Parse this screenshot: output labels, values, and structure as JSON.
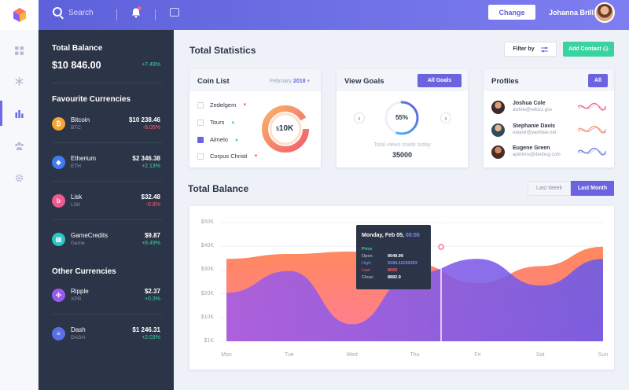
{
  "topbar": {
    "search_placeholder": "Search",
    "change_label": "Change",
    "user_name": "Johanna Brill"
  },
  "sidebar": {
    "total_balance_label": "Total Balance",
    "total_balance_value": "$10 846.00",
    "total_balance_change": "+7.49%",
    "favourite_heading": "Favourite Currencies",
    "favourites": [
      {
        "name": "Bitcoin",
        "code": "BTC",
        "value": "$10 238.46",
        "change": "-8.05%",
        "color": "#f7a531",
        "glyph": "₿"
      },
      {
        "name": "Etherium",
        "code": "ETH",
        "value": "$2 346.38",
        "change": "+2.13%",
        "color": "#3f7cf2",
        "glyph": "◆"
      },
      {
        "name": "Lisk",
        "code": "LSK",
        "value": "$32.48",
        "change": "-0.8%",
        "color": "#ef5b8e",
        "glyph": "b"
      },
      {
        "name": "GameCredits",
        "code": "Game",
        "value": "$9.87",
        "change": "+8.49%",
        "color": "#2ec5c5",
        "glyph": "▤"
      }
    ],
    "other_heading": "Other Currencies",
    "others": [
      {
        "name": "Ripple",
        "code": "XPR",
        "value": "$2.37",
        "change": "+0.3%",
        "color": "#9b59f0",
        "glyph": "✣"
      },
      {
        "name": "Dash",
        "code": "DASH",
        "value": "$1 246.31",
        "change": "+2.03%",
        "color": "#5a6ee8",
        "glyph": "≡"
      }
    ]
  },
  "main": {
    "title": "Total Statistics",
    "filter_label": "Filter by",
    "add_contact_label": "Add Contact"
  },
  "coin_list": {
    "title": "Coin List",
    "month": "February",
    "year": "2018",
    "items": [
      {
        "label": "Zedelgem",
        "checked": false,
        "trend": "down"
      },
      {
        "label": "Tours",
        "checked": false,
        "trend": "up"
      },
      {
        "label": "Almelo",
        "checked": true,
        "trend": "up"
      },
      {
        "label": "Corpus Christi",
        "checked": false,
        "trend": "down"
      }
    ],
    "donut_currency": "$",
    "donut_value": "10K"
  },
  "view_goals": {
    "title": "View Goals",
    "button_label": "All Goals",
    "percent": "55%",
    "percent_value": 55,
    "caption": "Total views made today",
    "total": "35000"
  },
  "profiles": {
    "title": "Profiles",
    "button_label": "All",
    "people": [
      {
        "name": "Joshua Cole",
        "email": "awhile@wikizz.gov",
        "wave_color": "#e55b9d"
      },
      {
        "name": "Stephanie Davis",
        "email": "etaylor@yambee.net",
        "wave_color": "#f5a06a"
      },
      {
        "name": "Eugene Green",
        "email": "apinkins@devbug.com",
        "wave_color": "#8b6be8"
      }
    ]
  },
  "balance": {
    "title": "Total Balance",
    "tab_week": "Last Week",
    "tab_month": "Last Month"
  },
  "tooltip": {
    "date": "Monday, Feb 05,",
    "time": "00:00",
    "price_label": "Price",
    "rows": [
      {
        "key": "Open:",
        "value": "9049.99",
        "color": "#ffffff"
      },
      {
        "key": "High:",
        "value": "9184.11192053",
        "color": "#7c8cff"
      },
      {
        "key": "Low:",
        "value": "8669",
        "color": "#ff5e6c"
      },
      {
        "key": "Close:",
        "value": "8882.9",
        "color": "#ffffff"
      }
    ]
  },
  "chart_data": {
    "type": "area",
    "categories": [
      "Mon",
      "Tue",
      "Wed",
      "Thu",
      "Fri",
      "Sat",
      "Sun"
    ],
    "y_ticks": [
      "$50K",
      "$40K",
      "$30K",
      "$20K",
      "$10K",
      "$1K"
    ],
    "ylim": [
      1,
      50
    ],
    "series": [
      {
        "values": [
          35,
          37,
          38,
          33,
          25,
          32,
          40
        ]
      },
      {
        "values": [
          21,
          30,
          8,
          29,
          35,
          24,
          35
        ]
      }
    ]
  }
}
